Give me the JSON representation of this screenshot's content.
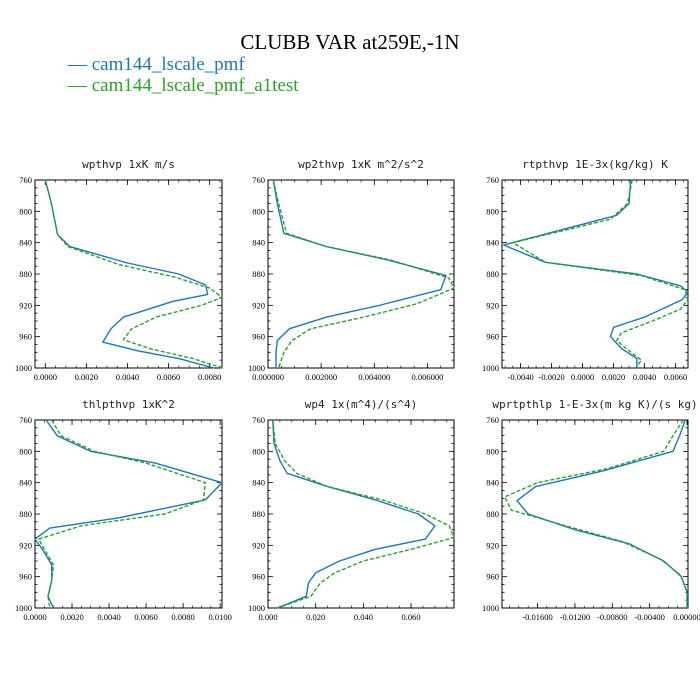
{
  "figure": {
    "title": "CLUBB VAR at259E,-1N",
    "legend": [
      {
        "label": "cam144_lscale_pmf",
        "color": "#1f77b4",
        "marker": "—"
      },
      {
        "label": "cam144_lscale_pmf_a1test",
        "color": "#2ca02c",
        "marker": "—"
      }
    ]
  },
  "chart_data": [
    {
      "type": "line",
      "title": "wpthvp  1xK m/s",
      "xlim": [
        -0.0005,
        0.0086
      ],
      "ylim": [
        760,
        1000
      ],
      "y_reversed": true,
      "xticks": [
        "0.0000",
        "0.0020",
        "0.0040",
        "0.0060",
        "0.0080"
      ],
      "xtick_values": [
        0,
        0.002,
        0.004,
        0.006,
        0.008
      ],
      "yticks": [
        "760",
        "800",
        "840",
        "880",
        "920",
        "960",
        "1000"
      ],
      "ytick_values": [
        760,
        800,
        840,
        880,
        920,
        960,
        1000
      ],
      "series": [
        {
          "name": "cam144_lscale_pmf",
          "color": "#1f77b4",
          "dash": "",
          "points": [
            [
              0.0,
              760
            ],
            [
              0.0003,
              790
            ],
            [
              0.0006,
              830
            ],
            [
              0.0012,
              845
            ],
            [
              0.004,
              866
            ],
            [
              0.0065,
              880
            ],
            [
              0.0078,
              894
            ],
            [
              0.0079,
              906
            ],
            [
              0.0062,
              915
            ],
            [
              0.0038,
              935
            ],
            [
              0.0032,
              950
            ],
            [
              0.0028,
              967
            ],
            [
              0.0045,
              978
            ],
            [
              0.0065,
              988
            ],
            [
              0.0082,
              1000
            ]
          ]
        },
        {
          "name": "cam144_lscale_pmf_a1test",
          "color": "#2ca02c",
          "dash": "4,2",
          "points": [
            [
              0.0,
              760
            ],
            [
              0.0003,
              790
            ],
            [
              0.0006,
              830
            ],
            [
              0.0011,
              845
            ],
            [
              0.0036,
              868
            ],
            [
              0.0063,
              884
            ],
            [
              0.008,
              898
            ],
            [
              0.0086,
              910
            ],
            [
              0.0076,
              920
            ],
            [
              0.0054,
              935
            ],
            [
              0.0042,
              950
            ],
            [
              0.0038,
              964
            ],
            [
              0.0052,
              976
            ],
            [
              0.0072,
              988
            ],
            [
              0.0086,
              1000
            ]
          ]
        }
      ]
    },
    {
      "type": "line",
      "title": "wp2thvp  1xK m^2/s^2",
      "xlim": [
        0,
        0.007
      ],
      "ylim": [
        760,
        1000
      ],
      "y_reversed": true,
      "xticks": [
        "0.000000",
        "0.002000",
        "0.004000",
        "0.006000"
      ],
      "xtick_values": [
        0,
        0.002,
        0.004,
        0.006
      ],
      "yticks": [
        "760",
        "800",
        "840",
        "880",
        "920",
        "960",
        "1000"
      ],
      "ytick_values": [
        760,
        800,
        840,
        880,
        920,
        960,
        1000
      ],
      "series": [
        {
          "name": "cam144_lscale_pmf",
          "color": "#1f77b4",
          "dash": "",
          "points": [
            [
              0.0002,
              760
            ],
            [
              0.00035,
              790
            ],
            [
              0.0006,
              828
            ],
            [
              0.0022,
              845
            ],
            [
              0.0045,
              862
            ],
            [
              0.0067,
              882
            ],
            [
              0.0065,
              900
            ],
            [
              0.0042,
              920
            ],
            [
              0.0022,
              935
            ],
            [
              0.0008,
              950
            ],
            [
              0.00035,
              965
            ],
            [
              0.0003,
              980
            ],
            [
              0.0003,
              1000
            ]
          ]
        },
        {
          "name": "cam144_lscale_pmf_a1test",
          "color": "#2ca02c",
          "dash": "4,2",
          "points": [
            [
              0.0002,
              760
            ],
            [
              0.0004,
              790
            ],
            [
              0.0007,
              828
            ],
            [
              0.0022,
              845
            ],
            [
              0.0046,
              862
            ],
            [
              0.0068,
              885
            ],
            [
              0.007,
              898
            ],
            [
              0.0056,
              918
            ],
            [
              0.0036,
              935
            ],
            [
              0.0016,
              950
            ],
            [
              0.0009,
              965
            ],
            [
              0.0006,
              980
            ],
            [
              0.0004,
              1000
            ]
          ]
        }
      ]
    },
    {
      "type": "line",
      "title": "rtpthvp  1E-3x(kg/kg) K",
      "xlim": [
        -0.0052,
        0.0068
      ],
      "ylim": [
        760,
        1000
      ],
      "y_reversed": true,
      "xticks": [
        "-0.0040",
        "-0.0020",
        "0.0000",
        "0.0020",
        "0.0040",
        "0.0060"
      ],
      "xtick_values": [
        -0.004,
        -0.002,
        0,
        0.002,
        0.004,
        0.006
      ],
      "yticks": [
        "760",
        "800",
        "840",
        "880",
        "920",
        "960",
        "1000"
      ],
      "ytick_values": [
        760,
        800,
        840,
        880,
        920,
        960,
        1000
      ],
      "series": [
        {
          "name": "cam144_lscale_pmf",
          "color": "#1f77b4",
          "dash": "",
          "points": [
            [
              0.0031,
              760
            ],
            [
              0.003,
              790
            ],
            [
              0.0022,
              805
            ],
            [
              -0.0051,
              843
            ],
            [
              -0.0024,
              865
            ],
            [
              0.0035,
              880
            ],
            [
              0.0063,
              895
            ],
            [
              0.0068,
              903
            ],
            [
              0.0064,
              913
            ],
            [
              0.004,
              935
            ],
            [
              0.002,
              948
            ],
            [
              0.0018,
              960
            ],
            [
              0.0025,
              975
            ],
            [
              0.0035,
              988
            ],
            [
              0.0035,
              1000
            ]
          ]
        },
        {
          "name": "cam144_lscale_pmf_a1test",
          "color": "#2ca02c",
          "dash": "4,2",
          "points": [
            [
              0.0032,
              760
            ],
            [
              0.0029,
              790
            ],
            [
              0.0018,
              810
            ],
            [
              -0.0045,
              840
            ],
            [
              -0.0024,
              865
            ],
            [
              0.0038,
              882
            ],
            [
              0.0066,
              900
            ],
            [
              0.0068,
              912
            ],
            [
              0.0063,
              925
            ],
            [
              0.0045,
              940
            ],
            [
              0.0025,
              955
            ],
            [
              0.0022,
              965
            ],
            [
              0.0028,
              975
            ],
            [
              0.0038,
              990
            ],
            [
              0.0034,
              1000
            ]
          ]
        }
      ]
    },
    {
      "type": "line",
      "title": "thlpthvp  1xK^2",
      "xlim": [
        0,
        0.0101
      ],
      "ylim": [
        760,
        1000
      ],
      "y_reversed": true,
      "xticks": [
        "0.0000",
        "0.0020",
        "0.0040",
        "0.0060",
        "0.0080",
        "0.0100"
      ],
      "xtick_values": [
        0,
        0.002,
        0.004,
        0.006,
        0.008,
        0.01
      ],
      "yticks": [
        "760",
        "800",
        "840",
        "880",
        "920",
        "960",
        "1000"
      ],
      "ytick_values": [
        760,
        800,
        840,
        880,
        920,
        960,
        1000
      ],
      "series": [
        {
          "name": "cam144_lscale_pmf",
          "color": "#1f77b4",
          "dash": "",
          "points": [
            [
              0.0006,
              760
            ],
            [
              0.0012,
              780
            ],
            [
              0.003,
              800
            ],
            [
              0.0065,
              815
            ],
            [
              0.0101,
              840
            ],
            [
              0.0092,
              862
            ],
            [
              0.0045,
              885
            ],
            [
              0.0008,
              898
            ],
            [
              0.0,
              912
            ],
            [
              0.0004,
              925
            ],
            [
              0.0009,
              945
            ],
            [
              0.0009,
              965
            ],
            [
              0.0007,
              985
            ],
            [
              0.001,
              1000
            ]
          ]
        },
        {
          "name": "cam144_lscale_pmf_a1test",
          "color": "#2ca02c",
          "dash": "4,2",
          "points": [
            [
              0.0009,
              760
            ],
            [
              0.0014,
              780
            ],
            [
              0.0032,
              800
            ],
            [
              0.006,
              815
            ],
            [
              0.0092,
              840
            ],
            [
              0.0091,
              862
            ],
            [
              0.007,
              880
            ],
            [
              0.0025,
              895
            ],
            [
              0.0002,
              912
            ],
            [
              0.0005,
              925
            ],
            [
              0.001,
              945
            ],
            [
              0.0009,
              965
            ],
            [
              0.0007,
              985
            ],
            [
              0.0008,
              1000
            ]
          ]
        }
      ]
    },
    {
      "type": "line",
      "title": "wp4  1x(m^4)/(s^4)",
      "xlim": [
        0,
        0.078
      ],
      "ylim": [
        760,
        1000
      ],
      "y_reversed": true,
      "xticks": [
        "0.000",
        "0.020",
        "0.040",
        "0.060"
      ],
      "xtick_values": [
        0,
        0.02,
        0.04,
        0.06
      ],
      "yticks": [
        "760",
        "800",
        "840",
        "880",
        "920",
        "960",
        "1000"
      ],
      "ytick_values": [
        760,
        800,
        840,
        880,
        920,
        960,
        1000
      ],
      "series": [
        {
          "name": "cam144_lscale_pmf",
          "color": "#1f77b4",
          "dash": "",
          "points": [
            [
              0.002,
              760
            ],
            [
              0.0025,
              790
            ],
            [
              0.005,
              812
            ],
            [
              0.008,
              828
            ],
            [
              0.025,
              845
            ],
            [
              0.045,
              862
            ],
            [
              0.063,
              880
            ],
            [
              0.07,
              895
            ],
            [
              0.066,
              912
            ],
            [
              0.045,
              925
            ],
            [
              0.03,
              940
            ],
            [
              0.02,
              955
            ],
            [
              0.017,
              968
            ],
            [
              0.016,
              985
            ],
            [
              0.004,
              1000
            ]
          ]
        },
        {
          "name": "cam144_lscale_pmf_a1test",
          "color": "#2ca02c",
          "dash": "4,2",
          "points": [
            [
              0.002,
              760
            ],
            [
              0.003,
              790
            ],
            [
              0.007,
              812
            ],
            [
              0.012,
              828
            ],
            [
              0.025,
              845
            ],
            [
              0.048,
              862
            ],
            [
              0.066,
              880
            ],
            [
              0.076,
              895
            ],
            [
              0.078,
              910
            ],
            [
              0.06,
              925
            ],
            [
              0.04,
              940
            ],
            [
              0.028,
              955
            ],
            [
              0.022,
              968
            ],
            [
              0.018,
              985
            ],
            [
              0.004,
              1000
            ]
          ]
        }
      ]
    },
    {
      "type": "line",
      "title": "wprtpthlp  1-E-3x(m kg K)/(s kg)",
      "xlim": [
        -0.0198,
        0.0001
      ],
      "ylim": [
        760,
        1000
      ],
      "y_reversed": true,
      "xticks": [
        "-0.01600",
        "-0.01200",
        "-0.00800",
        "-0.00400",
        "0.00000"
      ],
      "xtick_values": [
        -0.016,
        -0.012,
        -0.008,
        -0.004,
        0
      ],
      "yticks": [
        "760",
        "800",
        "840",
        "880",
        "920",
        "960",
        "1000"
      ],
      "ytick_values": [
        760,
        800,
        840,
        880,
        920,
        960,
        1000
      ],
      "series": [
        {
          "name": "cam144_lscale_pmf",
          "color": "#1f77b4",
          "dash": "",
          "points": [
            [
              -0.0002,
              760
            ],
            [
              -0.0008,
              780
            ],
            [
              -0.0015,
              800
            ],
            [
              -0.009,
              825
            ],
            [
              -0.0162,
              845
            ],
            [
              -0.0182,
              863
            ],
            [
              -0.017,
              880
            ],
            [
              -0.012,
              900
            ],
            [
              -0.0062,
              918
            ],
            [
              -0.0025,
              940
            ],
            [
              -0.0006,
              960
            ],
            [
              0.0,
              980
            ],
            [
              0.0,
              1000
            ]
          ]
        },
        {
          "name": "cam144_lscale_pmf_a1test",
          "color": "#2ca02c",
          "dash": "4,2",
          "points": [
            [
              -0.0004,
              760
            ],
            [
              -0.0015,
              780
            ],
            [
              -0.0025,
              800
            ],
            [
              -0.0085,
              822
            ],
            [
              -0.016,
              840
            ],
            [
              -0.0195,
              858
            ],
            [
              -0.0188,
              875
            ],
            [
              -0.013,
              895
            ],
            [
              -0.007,
              915
            ],
            [
              -0.0028,
              938
            ],
            [
              -0.0007,
              958
            ],
            [
              0.0,
              980
            ],
            [
              0.0,
              1000
            ]
          ]
        }
      ]
    }
  ]
}
